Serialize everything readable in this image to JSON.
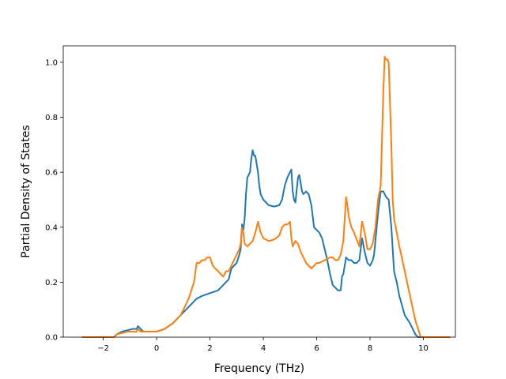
{
  "chart_data": {
    "type": "line",
    "title": "",
    "xlabel": "Frequency (THz)",
    "ylabel": "Partial Density of States",
    "xlim": [
      -3.5,
      11.2
    ],
    "ylim": [
      0.0,
      1.06
    ],
    "xticks": [
      -2,
      0,
      2,
      4,
      6,
      8,
      10
    ],
    "yticks": [
      0.0,
      0.2,
      0.4,
      0.6,
      0.8,
      1.0
    ],
    "xtick_labels": [
      "−2",
      "0",
      "2",
      "4",
      "6",
      "8",
      "10"
    ],
    "ytick_labels": [
      "0.0",
      "0.2",
      "0.4",
      "0.6",
      "0.8",
      "1.0"
    ],
    "grid": false,
    "colors": {
      "series1": "#1f77b4",
      "series2": "#ff7f0e"
    },
    "series": [
      {
        "x": [
          -2.8,
          -1.6,
          -1.5,
          -1.3,
          -1.1,
          -0.9,
          -0.75,
          -0.7,
          -0.6,
          -0.5,
          -0.3,
          0.0,
          0.3,
          0.6,
          0.9,
          1.2,
          1.5,
          1.7,
          2.0,
          2.3,
          2.5,
          2.6,
          2.7,
          2.8,
          3.0,
          3.1,
          3.15,
          3.2,
          3.25,
          3.3,
          3.35,
          3.4,
          3.5,
          3.55,
          3.6,
          3.65,
          3.7,
          3.75,
          3.8,
          3.85,
          3.9,
          4.0,
          4.2,
          4.4,
          4.6,
          4.7,
          4.8,
          4.9,
          5.0,
          5.05,
          5.1,
          5.15,
          5.2,
          5.3,
          5.35,
          5.45,
          5.5,
          5.6,
          5.7,
          5.8,
          5.9,
          6.0,
          6.1,
          6.2,
          6.4,
          6.5,
          6.6,
          6.8,
          6.9,
          6.95,
          7.0,
          7.1,
          7.2,
          7.25,
          7.3,
          7.4,
          7.5,
          7.6,
          7.7,
          7.8,
          7.9,
          8.0,
          8.1,
          8.15,
          8.2,
          8.3,
          8.4,
          8.5,
          8.6,
          8.7,
          8.8,
          8.85,
          8.9,
          9.0,
          9.1,
          9.3,
          9.5,
          9.7,
          9.8,
          9.9,
          11.0
        ],
        "y": [
          0.0,
          0.0,
          0.01,
          0.02,
          0.025,
          0.03,
          0.03,
          0.04,
          0.03,
          0.02,
          0.02,
          0.02,
          0.03,
          0.05,
          0.08,
          0.11,
          0.14,
          0.15,
          0.16,
          0.17,
          0.19,
          0.2,
          0.21,
          0.25,
          0.27,
          0.3,
          0.32,
          0.41,
          0.39,
          0.43,
          0.52,
          0.58,
          0.6,
          0.65,
          0.68,
          0.66,
          0.66,
          0.63,
          0.6,
          0.55,
          0.52,
          0.5,
          0.48,
          0.475,
          0.48,
          0.5,
          0.55,
          0.58,
          0.6,
          0.61,
          0.53,
          0.5,
          0.49,
          0.58,
          0.59,
          0.53,
          0.52,
          0.53,
          0.52,
          0.48,
          0.4,
          0.39,
          0.38,
          0.36,
          0.28,
          0.23,
          0.19,
          0.17,
          0.17,
          0.22,
          0.23,
          0.29,
          0.28,
          0.28,
          0.28,
          0.27,
          0.27,
          0.28,
          0.36,
          0.31,
          0.27,
          0.26,
          0.28,
          0.3,
          0.35,
          0.45,
          0.53,
          0.53,
          0.51,
          0.5,
          0.4,
          0.32,
          0.24,
          0.2,
          0.15,
          0.08,
          0.05,
          0.01,
          0.0,
          0.0,
          0.0
        ]
      },
      {
        "x": [
          -2.8,
          -1.6,
          -1.5,
          -1.3,
          -1.1,
          -0.9,
          -0.75,
          -0.7,
          -0.6,
          -0.5,
          -0.3,
          0.0,
          0.3,
          0.6,
          0.9,
          1.2,
          1.4,
          1.5,
          1.6,
          1.7,
          1.8,
          1.9,
          2.0,
          2.1,
          2.2,
          2.4,
          2.5,
          2.6,
          2.7,
          2.8,
          3.0,
          3.1,
          3.15,
          3.2,
          3.25,
          3.3,
          3.4,
          3.5,
          3.6,
          3.7,
          3.8,
          3.85,
          3.9,
          4.0,
          4.2,
          4.4,
          4.6,
          4.7,
          4.8,
          4.9,
          5.0,
          5.05,
          5.1,
          5.2,
          5.3,
          5.4,
          5.5,
          5.6,
          5.8,
          5.9,
          6.0,
          6.1,
          6.3,
          6.5,
          6.6,
          6.7,
          6.8,
          6.9,
          7.0,
          7.1,
          7.15,
          7.2,
          7.3,
          7.4,
          7.6,
          7.7,
          7.8,
          7.9,
          8.0,
          8.1,
          8.2,
          8.3,
          8.4,
          8.5,
          8.55,
          8.6,
          8.65,
          8.7,
          8.8,
          8.85,
          8.9,
          9.0,
          9.1,
          9.3,
          9.5,
          9.7,
          9.8,
          9.9,
          11.0
        ],
        "y": [
          0.0,
          0.0,
          0.01,
          0.015,
          0.02,
          0.02,
          0.02,
          0.03,
          0.02,
          0.02,
          0.02,
          0.02,
          0.03,
          0.05,
          0.08,
          0.14,
          0.2,
          0.27,
          0.27,
          0.28,
          0.28,
          0.29,
          0.29,
          0.26,
          0.25,
          0.23,
          0.22,
          0.24,
          0.24,
          0.26,
          0.3,
          0.32,
          0.34,
          0.4,
          0.38,
          0.34,
          0.33,
          0.34,
          0.35,
          0.38,
          0.42,
          0.4,
          0.38,
          0.36,
          0.35,
          0.355,
          0.37,
          0.4,
          0.41,
          0.41,
          0.42,
          0.36,
          0.33,
          0.35,
          0.34,
          0.31,
          0.29,
          0.27,
          0.25,
          0.26,
          0.27,
          0.27,
          0.28,
          0.29,
          0.29,
          0.28,
          0.28,
          0.3,
          0.35,
          0.51,
          0.48,
          0.44,
          0.4,
          0.38,
          0.33,
          0.42,
          0.38,
          0.32,
          0.32,
          0.34,
          0.4,
          0.5,
          0.55,
          0.9,
          1.02,
          1.01,
          1.01,
          1.0,
          0.7,
          0.5,
          0.43,
          0.38,
          0.33,
          0.24,
          0.15,
          0.06,
          0.03,
          0.0,
          0.0
        ]
      }
    ]
  }
}
